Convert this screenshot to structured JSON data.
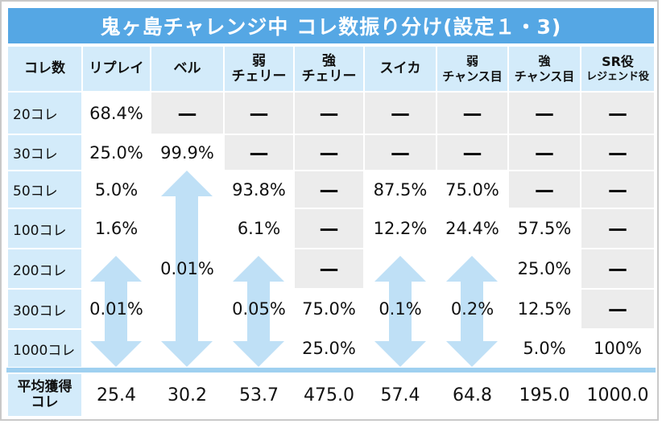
{
  "title": "鬼ヶ島チャレンジ中 コレ数振り分け(設定１・3)",
  "header": {
    "col0": "コレ数",
    "col1": "リプレイ",
    "col2": "ベル",
    "col3_l1": "弱",
    "col3_l2": "チェリー",
    "col4_l1": "強",
    "col4_l2": "チェリー",
    "col5": "スイカ",
    "col6_l1": "弱",
    "col6_l2": "チャンス目",
    "col7_l1": "強",
    "col7_l2": "チャンス目",
    "col8_l1": "SR役",
    "col8_l2": "レジェンド役"
  },
  "rows": [
    {
      "label": "20コレ",
      "values": [
        "68.4%",
        "—",
        "—",
        "—",
        "—",
        "—",
        "—",
        "—"
      ]
    },
    {
      "label": "30コレ",
      "values": [
        "25.0%",
        "99.9%",
        "—",
        "—",
        "—",
        "—",
        "—",
        "—"
      ]
    },
    {
      "label": "50コレ",
      "values": [
        "5.0%",
        "",
        "93.8%",
        "—",
        "87.5%",
        "75.0%",
        "—",
        "—"
      ]
    },
    {
      "label": "100コレ",
      "values": [
        "1.6%",
        "",
        "6.1%",
        "—",
        "12.2%",
        "24.4%",
        "57.5%",
        "—"
      ]
    },
    {
      "label": "200コレ",
      "values": [
        "",
        "",
        "",
        "—",
        "",
        "",
        "25.0%",
        "—"
      ]
    },
    {
      "label": "300コレ",
      "values": [
        "",
        "",
        "",
        "75.0%",
        "",
        "",
        "12.5%",
        "—"
      ]
    },
    {
      "label": "1000コレ",
      "values": [
        "",
        "",
        "",
        "25.0%",
        "",
        "",
        "5.0%",
        "100%"
      ]
    }
  ],
  "range_values": {
    "replay": "0.01%",
    "bell": "0.01%",
    "weak_cherry": "0.05%",
    "suika": "0.1%",
    "weak_chance": "0.2%"
  },
  "average": {
    "label_l1": "平均獲得",
    "label_l2": "コレ",
    "values": [
      "25.4",
      "30.2",
      "53.7",
      "475.0",
      "57.4",
      "64.8",
      "195.0",
      "1000.0"
    ]
  },
  "colors": {
    "title_bg": "#55a7e4",
    "header_bg": "#d3ebfa",
    "gray_cell": "#ececec",
    "arrow": "#bfe0f6"
  }
}
